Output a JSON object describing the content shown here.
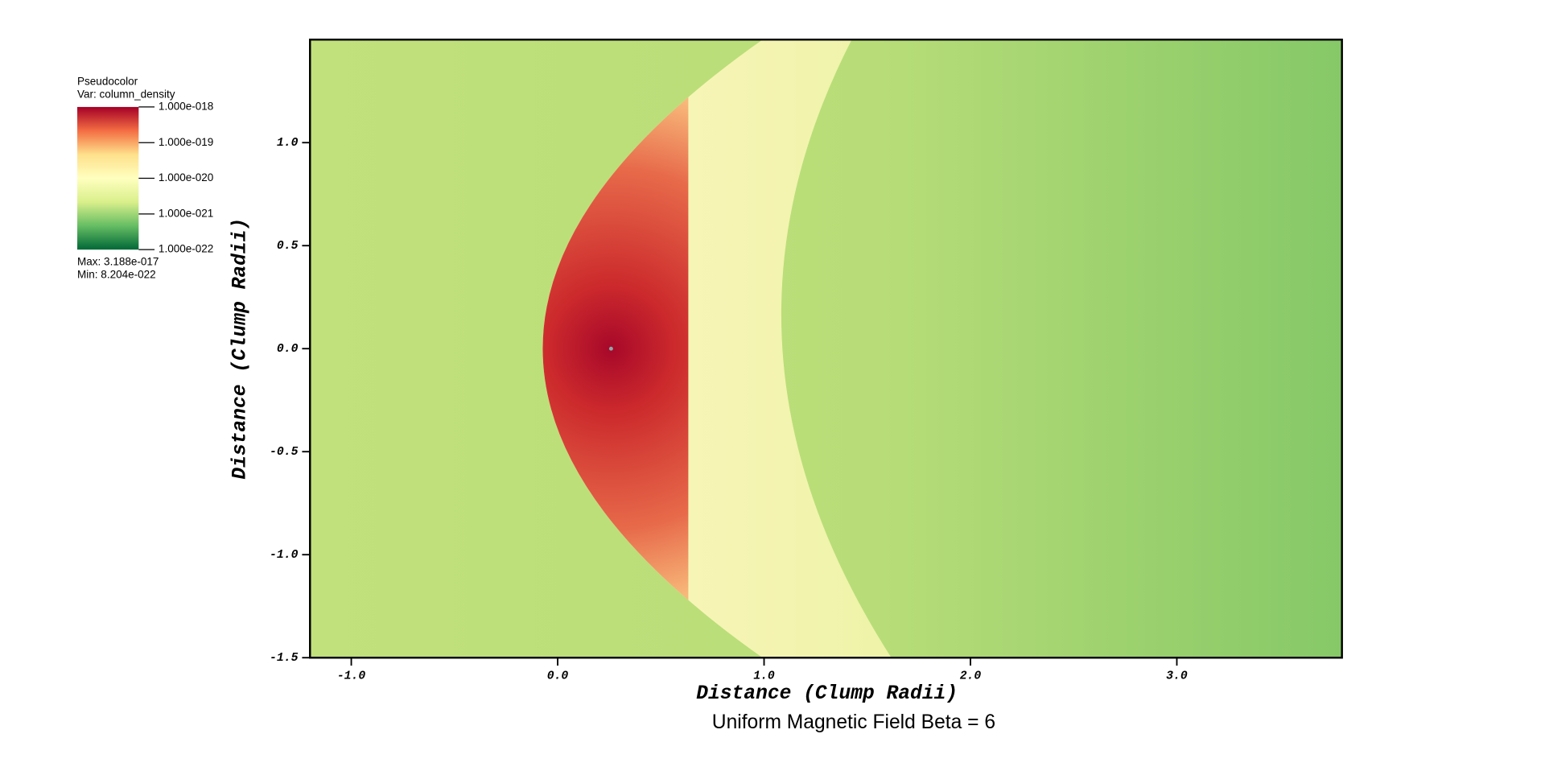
{
  "chart_data": {
    "type": "pseudocolor",
    "title": "Uniform Magnetic Field Beta = 6",
    "x_label": "Distance (Clump Radii)",
    "y_label": "Distance (Clump Radii)",
    "xlim": [
      -1.2,
      3.8
    ],
    "ylim": [
      -1.5,
      1.5
    ],
    "xticks": [
      {
        "value": -1,
        "label": "-1.0"
      },
      {
        "value": 0,
        "label": "0.0"
      },
      {
        "value": 1,
        "label": "1.0"
      },
      {
        "value": 2,
        "label": "2.0"
      },
      {
        "value": 3,
        "label": "3.0"
      }
    ],
    "yticks": [
      {
        "value": -1.5,
        "label": "-1.5"
      },
      {
        "value": -1,
        "label": "-1.0"
      },
      {
        "value": -0.5,
        "label": "-0.5"
      },
      {
        "value": 0,
        "label": "0.0"
      },
      {
        "value": 0.5,
        "label": "0.5"
      },
      {
        "value": 1,
        "label": "1.0"
      }
    ],
    "legend": {
      "title": "Pseudocolor",
      "variable": "Var: column_density",
      "log_scale": true,
      "lim": [
        1e-22,
        1e-18
      ],
      "ticks": [
        {
          "value": 1e-18,
          "label": "1.000e-018"
        },
        {
          "value": 1e-19,
          "label": "1.000e-019"
        },
        {
          "value": 1e-20,
          "label": "1.000e-020"
        },
        {
          "value": 1e-21,
          "label": "1.000e-021"
        },
        {
          "value": 1e-22,
          "label": "1.000e-022"
        }
      ],
      "colors": [
        "#a50026",
        "#f46d43",
        "#fee08b",
        "#ffffbf",
        "#d9ef8b",
        "#66bd63",
        "#006837"
      ],
      "max_text": "Max:  3.188e-017",
      "min_text": "Min:  8.204e-022"
    }
  }
}
